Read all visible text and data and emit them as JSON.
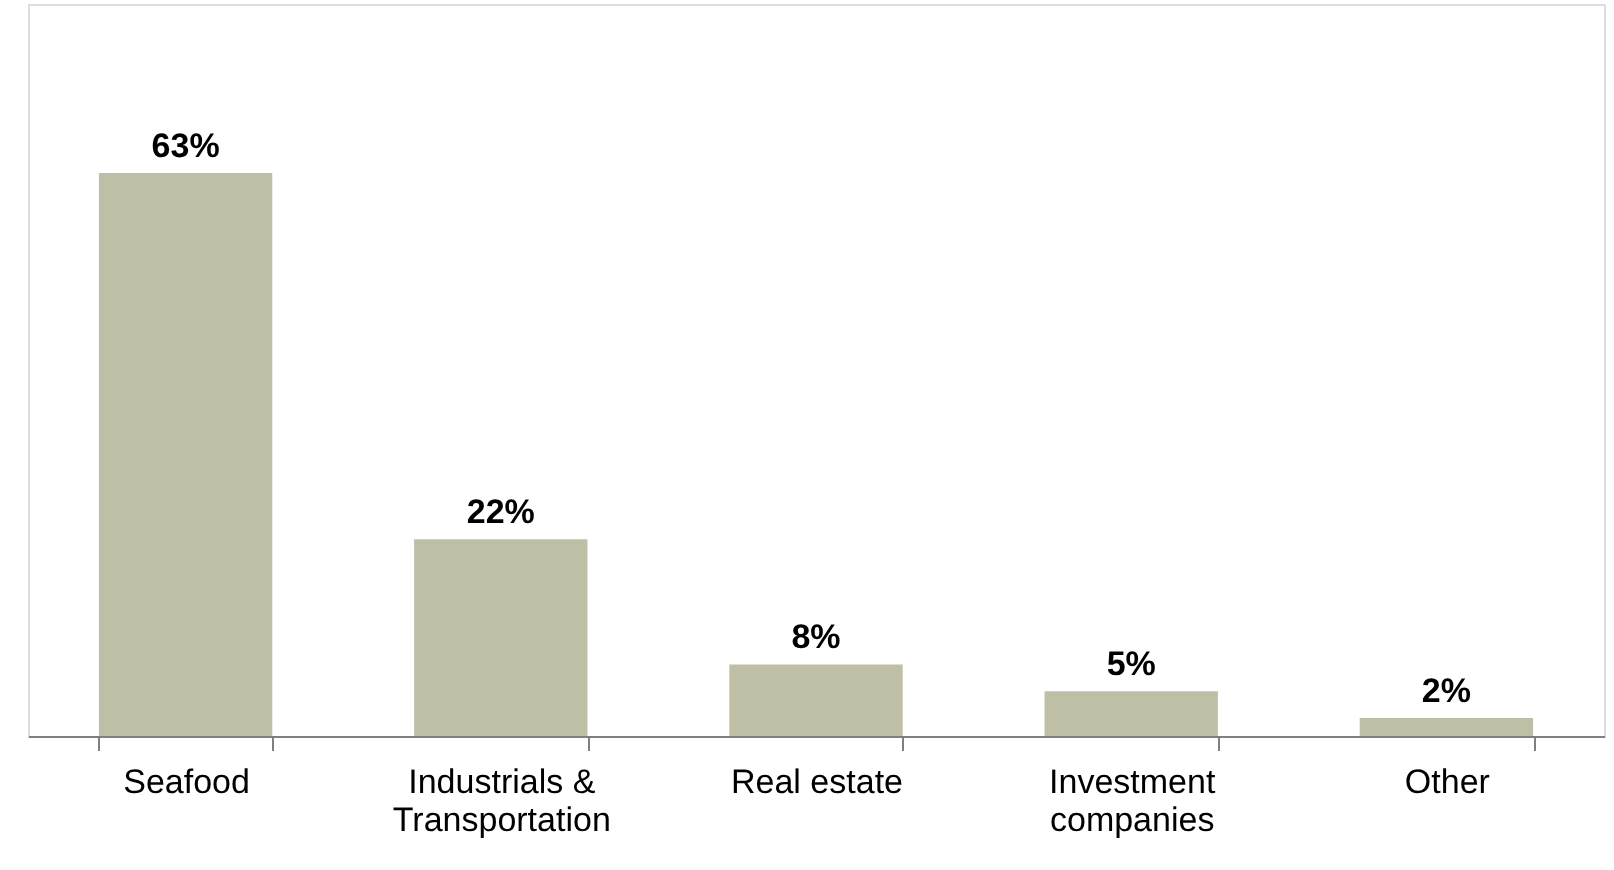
{
  "chart_data": {
    "type": "bar",
    "categories": [
      "Seafood",
      "Industrials & Transportation",
      "Real estate",
      "Investment companies",
      "Other"
    ],
    "values": [
      63,
      22,
      8,
      5,
      2
    ],
    "value_labels": [
      "63%",
      "22%",
      "8%",
      "5%",
      "2%"
    ],
    "color": "#bfbfa5"
  }
}
